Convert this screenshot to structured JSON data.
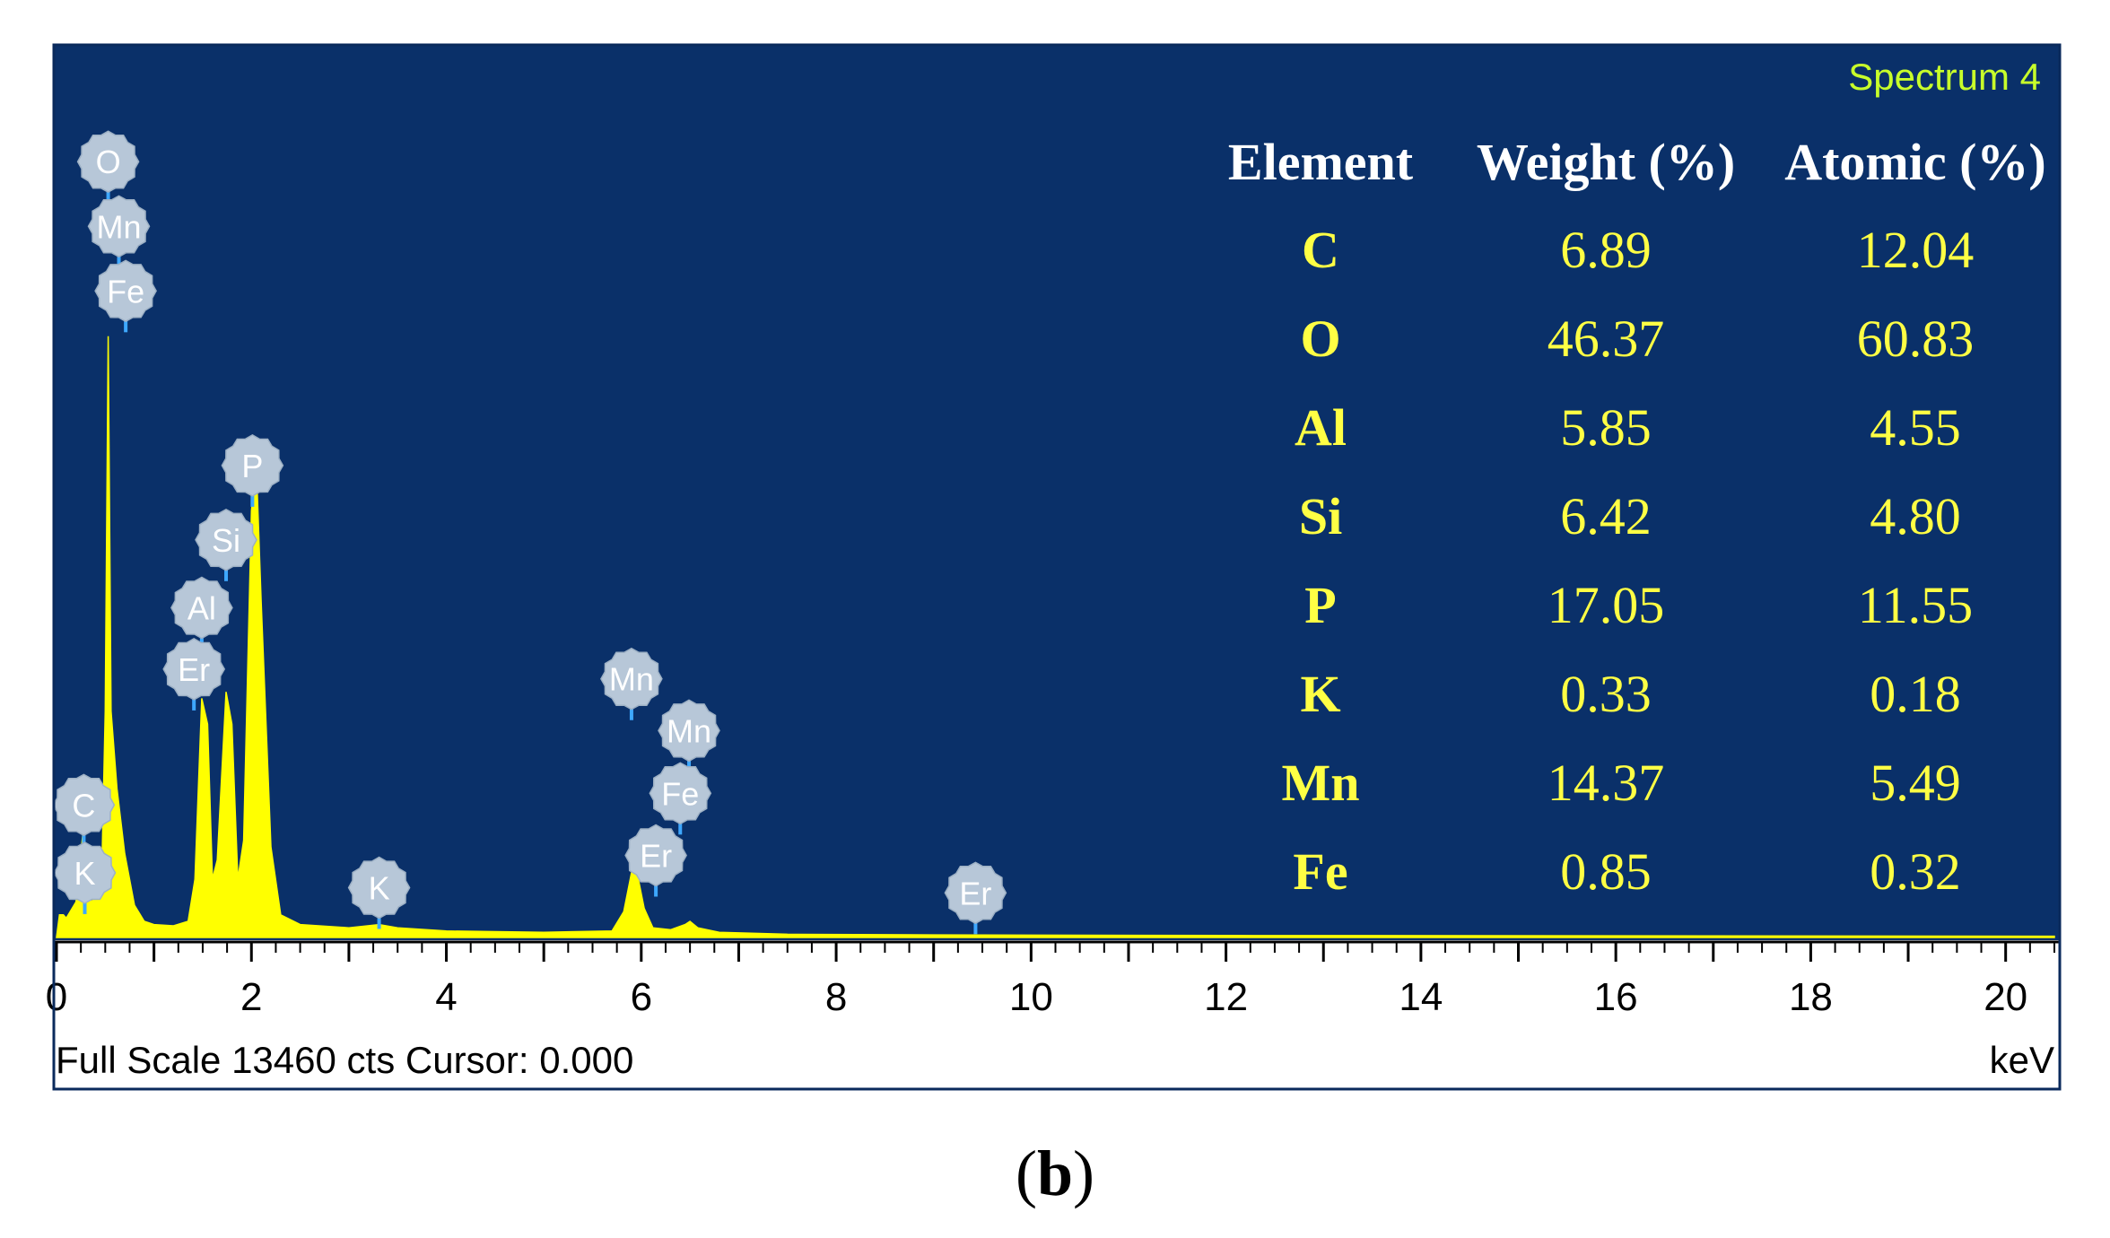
{
  "spectrum_label": "Spectrum 4",
  "panel_label_open": "(",
  "panel_label_letter": "b",
  "panel_label_close": ")",
  "footer": {
    "scale_text": "Full Scale 13460 cts Cursor: 0.000",
    "unit_label": "keV"
  },
  "table": {
    "headers": [
      "Element",
      "Weight (%)",
      "Atomic (%)"
    ],
    "rows": [
      {
        "element": "C",
        "weight": "6.89",
        "atomic": "12.04"
      },
      {
        "element": "O",
        "weight": "46.37",
        "atomic": "60.83"
      },
      {
        "element": "Al",
        "weight": "5.85",
        "atomic": "4.55"
      },
      {
        "element": "Si",
        "weight": "6.42",
        "atomic": "4.80"
      },
      {
        "element": "P",
        "weight": "17.05",
        "atomic": "11.55"
      },
      {
        "element": "K",
        "weight": "0.33",
        "atomic": "0.18"
      },
      {
        "element": "Mn",
        "weight": "14.37",
        "atomic": "5.49"
      },
      {
        "element": "Fe",
        "weight": "0.85",
        "atomic": "0.32"
      }
    ]
  },
  "chart_data": {
    "type": "area",
    "title": "",
    "xlabel": "keV",
    "ylabel": "",
    "xlim": [
      0,
      20.5
    ],
    "ylim": [
      0,
      13460
    ],
    "xticks": [
      0,
      2,
      4,
      6,
      8,
      10,
      12,
      14,
      16,
      18,
      20
    ],
    "xtick_labels": [
      "0",
      "2",
      "4",
      "6",
      "8",
      "10",
      "12",
      "14",
      "16",
      "18",
      "20"
    ],
    "series": [
      {
        "color": "#ffff00",
        "points": [
          [
            0.0,
            0
          ],
          [
            0.03,
            350
          ],
          [
            0.07,
            350
          ],
          [
            0.1,
            300
          ],
          [
            0.2,
            550
          ],
          [
            0.27,
            1600
          ],
          [
            0.32,
            650
          ],
          [
            0.36,
            550
          ],
          [
            0.42,
            700
          ],
          [
            0.47,
            1400
          ],
          [
            0.5,
            3500
          ],
          [
            0.53,
            9300
          ],
          [
            0.56,
            3500
          ],
          [
            0.62,
            2300
          ],
          [
            0.7,
            1300
          ],
          [
            0.8,
            500
          ],
          [
            0.9,
            250
          ],
          [
            1.0,
            200
          ],
          [
            1.2,
            180
          ],
          [
            1.35,
            250
          ],
          [
            1.42,
            900
          ],
          [
            1.49,
            3700
          ],
          [
            1.55,
            3300
          ],
          [
            1.6,
            900
          ],
          [
            1.65,
            1200
          ],
          [
            1.74,
            3800
          ],
          [
            1.8,
            3300
          ],
          [
            1.86,
            900
          ],
          [
            1.92,
            1500
          ],
          [
            2.0,
            6600
          ],
          [
            2.05,
            7300
          ],
          [
            2.1,
            5200
          ],
          [
            2.2,
            1400
          ],
          [
            2.3,
            350
          ],
          [
            2.5,
            200
          ],
          [
            3.0,
            150
          ],
          [
            3.31,
            200
          ],
          [
            3.5,
            150
          ],
          [
            4.0,
            100
          ],
          [
            5.0,
            80
          ],
          [
            5.7,
            100
          ],
          [
            5.82,
            400
          ],
          [
            5.9,
            1000
          ],
          [
            5.95,
            1050
          ],
          [
            6.03,
            450
          ],
          [
            6.12,
            150
          ],
          [
            6.3,
            120
          ],
          [
            6.45,
            200
          ],
          [
            6.5,
            250
          ],
          [
            6.58,
            150
          ],
          [
            6.8,
            80
          ],
          [
            7.5,
            50
          ],
          [
            9.0,
            40
          ],
          [
            12.0,
            30
          ],
          [
            20.5,
            20
          ]
        ]
      }
    ],
    "peak_labels": [
      {
        "element": "O",
        "energy": 0.53,
        "level": 12000
      },
      {
        "element": "Mn",
        "energy": 0.64,
        "level": 11000
      },
      {
        "element": "Fe",
        "energy": 0.71,
        "level": 10000
      },
      {
        "element": "P",
        "energy": 2.01,
        "level": 7300
      },
      {
        "element": "Si",
        "energy": 1.74,
        "level": 6150
      },
      {
        "element": "Al",
        "energy": 1.49,
        "level": 5100
      },
      {
        "element": "Er",
        "energy": 1.41,
        "level": 4150
      },
      {
        "element": "Mn",
        "energy": 5.9,
        "level": 4000
      },
      {
        "element": "Mn",
        "energy": 6.49,
        "level": 3200
      },
      {
        "element": "Fe",
        "energy": 6.4,
        "level": 2230
      },
      {
        "element": "Er",
        "energy": 6.15,
        "level": 1270
      },
      {
        "element": "C",
        "energy": 0.28,
        "level": 2050
      },
      {
        "element": "K",
        "energy": 0.29,
        "level": 1000
      },
      {
        "element": "K",
        "energy": 3.31,
        "level": 770
      },
      {
        "element": "Er",
        "energy": 9.43,
        "level": 690
      }
    ]
  },
  "colors": {
    "background": "#0a3069",
    "spectrum": "#ffff00",
    "table_text": "#ffff44",
    "table_header": "#ffffff",
    "spectrum_label": "#c8ff2a",
    "marker_fill": "#b7c7d8",
    "marker_text": "#ffffff",
    "marker_stem": "#3ea8ff"
  }
}
